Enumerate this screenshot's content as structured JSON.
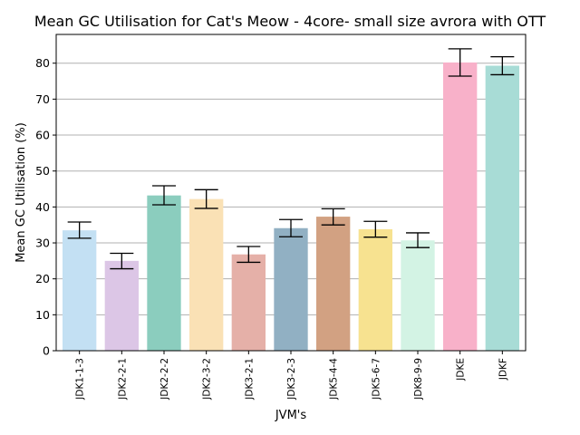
{
  "chart_data": {
    "type": "bar",
    "title": "Mean GC Utilisation for Cat's Meow - 4core- small size avrora with OTT",
    "xlabel": "JVM's",
    "ylabel": "Mean GC Utilisation (%)",
    "categories": [
      "JDK1-1-3",
      "JDK2-2-1",
      "JDK2-2-2",
      "JDK2-3-2",
      "JDK3-2-1",
      "JDK3-2-3",
      "JDK5-4-4",
      "JDK5-6-7",
      "JDK8-9-9",
      "JDKE",
      "JDKF"
    ],
    "values": [
      33.5,
      25.0,
      43.2,
      42.2,
      26.8,
      34.1,
      37.3,
      33.8,
      30.7,
      80.2,
      79.3
    ],
    "error_low": [
      31.3,
      22.8,
      40.6,
      39.6,
      24.6,
      31.7,
      35.0,
      31.6,
      28.7,
      76.4,
      76.8
    ],
    "error_high": [
      35.8,
      27.1,
      45.9,
      44.8,
      29.0,
      36.5,
      39.5,
      36.0,
      32.8,
      84.0,
      81.8
    ],
    "colors": [
      "#c3e0f3",
      "#dcc6e6",
      "#8bcdbe",
      "#fae1b5",
      "#e5b0a8",
      "#91b0c3",
      "#d2a182",
      "#f7e290",
      "#d3f3e4",
      "#f8b1c9",
      "#a8dcd6"
    ],
    "ylim": [
      0,
      88
    ],
    "yticks": [
      0,
      10,
      20,
      30,
      40,
      50,
      60,
      70,
      80
    ],
    "grid": "horizontal",
    "legend": "none"
  }
}
